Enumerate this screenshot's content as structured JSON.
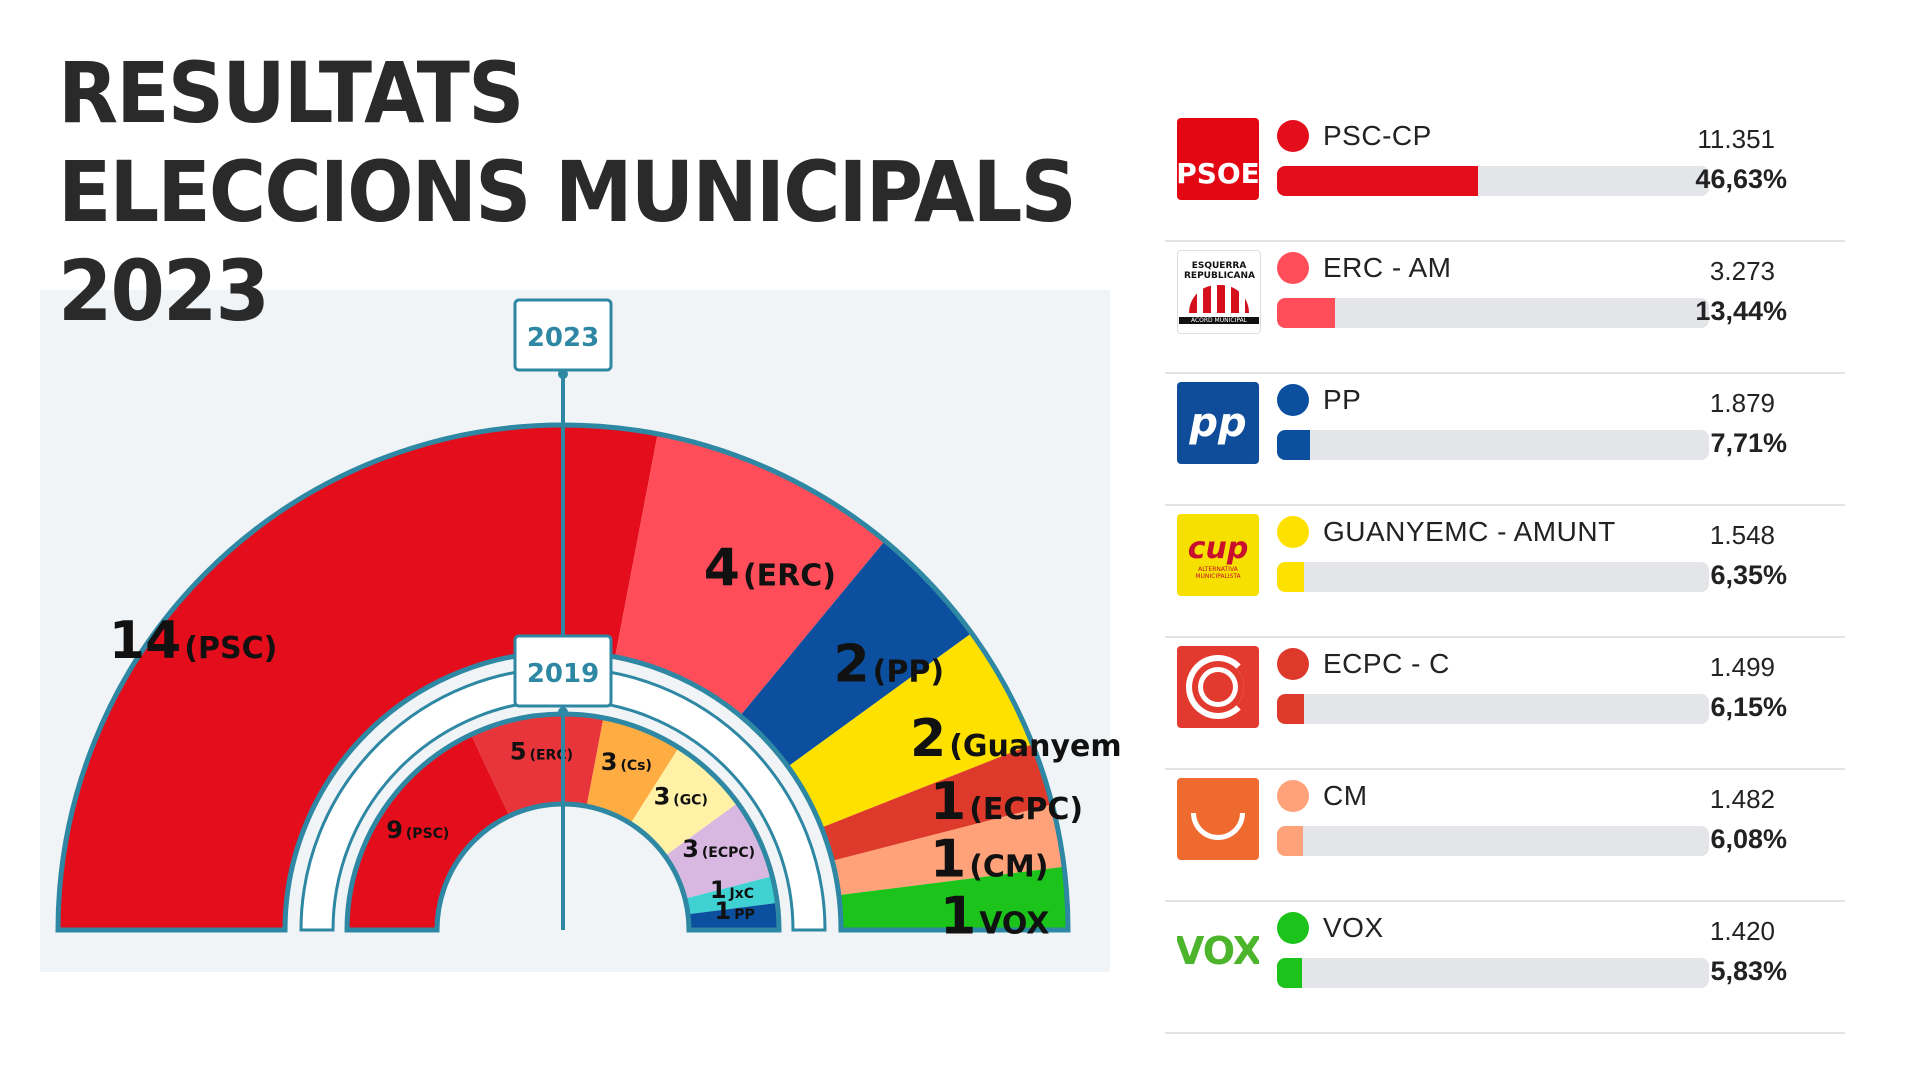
{
  "title": {
    "line1": "RESULTATS",
    "line2": "ELECCIONS MUNICIPALS",
    "line3": "2023"
  },
  "colors": {
    "psc": "#e30d1b",
    "erc": "#ff4d5a",
    "pp": "#0b4f9e",
    "guanyem": "#ffe100",
    "ecpc": "#dd3a2c",
    "cm": "#ffa27a",
    "vox": "#1bc31b",
    "cs": "#ffad42",
    "gc": "#fff2a6",
    "ecpc2019": "#d8b8e0",
    "jxc": "#40d2d2",
    "outline": "#2e87a3",
    "track": "#e3e5e8"
  },
  "chart_data": [
    {
      "type": "hemicycle",
      "title": "2023",
      "seats": [
        {
          "label": "14",
          "party": "(PSC)",
          "value": 14,
          "color": "#e30d1b"
        },
        {
          "label": "4",
          "party": "(ERC)",
          "value": 4,
          "color": "#ff4d5a"
        },
        {
          "label": "2",
          "party": "(PP)",
          "value": 2,
          "color": "#0b4f9e"
        },
        {
          "label": "2",
          "party": "(Guanyem",
          "value": 2,
          "color": "#ffe100"
        },
        {
          "label": "1",
          "party": "(ECPC)",
          "value": 1,
          "color": "#dd3a2c"
        },
        {
          "label": "1",
          "party": "(CM)",
          "value": 1,
          "color": "#ffa27a"
        },
        {
          "label": "1",
          "party": "VOX",
          "value": 1,
          "color": "#1bc31b"
        }
      ]
    },
    {
      "type": "hemicycle",
      "title": "2019",
      "seats": [
        {
          "label": "9",
          "party": "(PSC)",
          "value": 9,
          "color": "#e30d1b"
        },
        {
          "label": "5",
          "party": "(ERC)",
          "value": 5,
          "color": "#e8353c"
        },
        {
          "label": "3",
          "party": "(Cs)",
          "value": 3,
          "color": "#ffad42"
        },
        {
          "label": "3",
          "party": "(GC)",
          "value": 3,
          "color": "#fff2a6"
        },
        {
          "label": "3",
          "party": "(ECPC)",
          "value": 3,
          "color": "#d8b8e0"
        },
        {
          "label": "1",
          "party": "JxC",
          "value": 1,
          "color": "#40d2d2"
        },
        {
          "label": "1",
          "party": "PP",
          "value": 1,
          "color": "#0b4f9e"
        }
      ]
    },
    {
      "type": "bar",
      "categories": [
        "PSC-CP",
        "ERC - AM",
        "PP",
        "GUANYEMC - AMUNT",
        "ECPC - C",
        "CM",
        "VOX"
      ],
      "values": [
        46.63,
        13.44,
        7.71,
        6.35,
        6.15,
        6.08,
        5.83
      ],
      "votes": [
        11351,
        3273,
        1879,
        1548,
        1499,
        1482,
        1420
      ],
      "xlim": [
        0,
        100
      ]
    }
  ],
  "results": [
    {
      "name": "PSC-CP",
      "votes": "11.351",
      "pct": "46,63%",
      "value": 46.63,
      "color": "#e30d1b",
      "logo": "psoe-logo",
      "logo_text": "PSOE"
    },
    {
      "name": "ERC - AM",
      "votes": "3.273",
      "pct": "13,44%",
      "value": 13.44,
      "color": "#ff4d5a",
      "logo": "erc-logo",
      "logo_text": "ESQUERRA REPUBLICANA",
      "logo_sub": "ACORD MUNICIPAL"
    },
    {
      "name": "PP",
      "votes": "1.879",
      "pct": "7,71%",
      "value": 7.71,
      "color": "#0b4f9e",
      "logo": "pp-logo",
      "logo_text": "pp"
    },
    {
      "name": "GUANYEMC - AMUNT",
      "votes": "1.548",
      "pct": "6,35%",
      "value": 6.35,
      "color": "#ffe100",
      "logo": "cup-logo",
      "logo_text": "cup",
      "logo_sub": "ALTERNATIVA MUNICIPALISTA"
    },
    {
      "name": "ECPC - C",
      "votes": "1.499",
      "pct": "6,15%",
      "value": 6.15,
      "color": "#dd3a2c",
      "logo": "ecpc-logo"
    },
    {
      "name": "CM",
      "votes": "1.482",
      "pct": "6,08%",
      "value": 6.08,
      "color": "#ffa27a",
      "logo": "cm-logo"
    },
    {
      "name": "VOX",
      "votes": "1.420",
      "pct": "5,83%",
      "value": 5.83,
      "color": "#1bc31b",
      "logo": "vox-logo",
      "logo_text": "VOX"
    }
  ]
}
